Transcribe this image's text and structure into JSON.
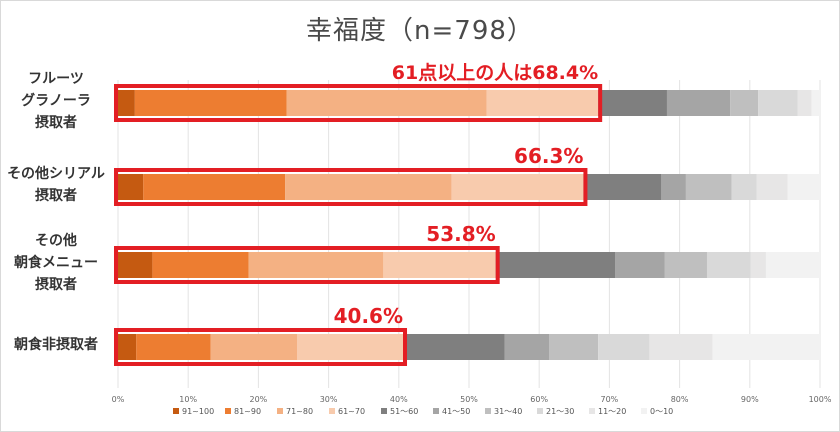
{
  "chart_data": {
    "type": "bar",
    "orientation": "horizontal",
    "stacked": true,
    "title": "幸福度（n=798）",
    "categories": [
      "フルーツ\nグラノーラ\n摂取者",
      "その他シリアル\n摂取者",
      "その他\n朝食メニュー\n摂取者",
      "朝食非摂取者"
    ],
    "xlim": [
      0,
      100
    ],
    "x_ticks": [
      "0%",
      "10%",
      "20%",
      "30%",
      "40%",
      "50%",
      "60%",
      "70%",
      "80%",
      "90%",
      "100%"
    ],
    "grid": true,
    "legend_position": "bottom",
    "series": [
      {
        "name": "91~100",
        "color": "#c55a11",
        "values": [
          2.4,
          3.6,
          4.9,
          2.6
        ]
      },
      {
        "name": "81~90",
        "color": "#ed7d31",
        "values": [
          21.6,
          20.2,
          13.7,
          10.6
        ]
      },
      {
        "name": "71~80",
        "color": "#f4b183",
        "values": [
          28.5,
          23.7,
          19.2,
          12.3
        ]
      },
      {
        "name": "61~70",
        "color": "#f8cbad",
        "values": [
          15.9,
          18.8,
          16.0,
          15.1
        ]
      },
      {
        "name": "51～60",
        "color": "#7f7f7f",
        "values": [
          9.8,
          11.1,
          17.0,
          14.5
        ]
      },
      {
        "name": "41～50",
        "color": "#a5a5a5",
        "values": [
          9.0,
          3.5,
          7.1,
          6.3
        ]
      },
      {
        "name": "31～40",
        "color": "#bfbfbf",
        "values": [
          4.0,
          6.5,
          6.0,
          7.0
        ]
      },
      {
        "name": "21～30",
        "color": "#d9d9d9",
        "values": [
          5.6,
          3.6,
          6.2,
          7.3
        ]
      },
      {
        "name": "11～20",
        "color": "#e7e6e6",
        "values": [
          2.0,
          4.4,
          2.2,
          9.0
        ]
      },
      {
        "name": "0～10",
        "color": "#f2f2f2",
        "values": [
          1.2,
          4.6,
          7.7,
          15.3
        ]
      }
    ],
    "annotations": [
      {
        "text": "61点以上の人は68.4%",
        "value": 68.4
      },
      {
        "text": "66.3%",
        "value": 66.3
      },
      {
        "text": "53.8%",
        "value": 53.8
      },
      {
        "text": "40.6%",
        "value": 40.6
      }
    ],
    "highlight_color": "#e31e24"
  }
}
